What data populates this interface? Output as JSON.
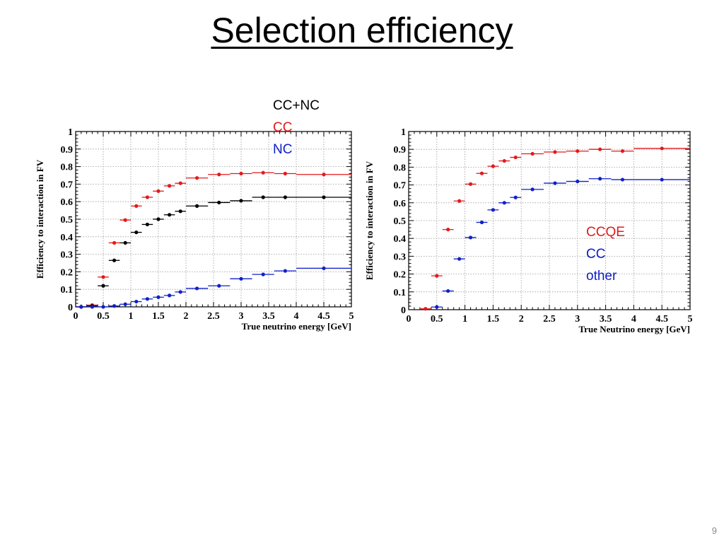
{
  "slide": {
    "title": "Selection efficiency",
    "page_number": "9"
  },
  "colors": {
    "red": "#e31a1c",
    "black": "#000000",
    "blue": "#1020c8"
  },
  "chart_data": [
    {
      "type": "scatter",
      "title": "",
      "xlabel": "True neutrino energy [GeV]",
      "ylabel": "Efficiency to interaction in FV",
      "xlim": [
        0,
        5
      ],
      "ylim": [
        0,
        1
      ],
      "xticks": [
        "0",
        "0.5",
        "1",
        "1.5",
        "2",
        "2.5",
        "3",
        "3.5",
        "4",
        "4.5",
        "5"
      ],
      "yticks": [
        "0",
        "0.1",
        "0.2",
        "0.3",
        "0.4",
        "0.5",
        "0.6",
        "0.7",
        "0.8",
        "0.9",
        "1"
      ],
      "grid": true,
      "legend": {
        "entries": [
          "CC+NC",
          "CC",
          "NC"
        ],
        "placement": "top-right"
      },
      "series": [
        {
          "name": "CC",
          "color": "#e31a1c",
          "x": [
            0.1,
            0.3,
            0.5,
            0.7,
            0.9,
            1.1,
            1.3,
            1.5,
            1.7,
            1.9,
            2.2,
            2.6,
            3.0,
            3.4,
            3.8,
            4.5
          ],
          "xerr": [
            0.1,
            0.1,
            0.1,
            0.1,
            0.1,
            0.1,
            0.1,
            0.1,
            0.1,
            0.1,
            0.2,
            0.2,
            0.2,
            0.2,
            0.2,
            0.5
          ],
          "y": [
            0.0,
            0.01,
            0.17,
            0.365,
            0.495,
            0.575,
            0.625,
            0.66,
            0.69,
            0.705,
            0.735,
            0.755,
            0.76,
            0.765,
            0.76,
            0.755
          ]
        },
        {
          "name": "CC+NC",
          "color": "#000000",
          "x": [
            0.1,
            0.3,
            0.5,
            0.7,
            0.9,
            1.1,
            1.3,
            1.5,
            1.7,
            1.9,
            2.2,
            2.6,
            3.0,
            3.4,
            3.8,
            4.5
          ],
          "xerr": [
            0.1,
            0.1,
            0.1,
            0.1,
            0.1,
            0.1,
            0.1,
            0.1,
            0.1,
            0.1,
            0.2,
            0.2,
            0.2,
            0.2,
            0.2,
            0.5
          ],
          "y": [
            0.0,
            0.005,
            0.12,
            0.265,
            0.365,
            0.425,
            0.47,
            0.5,
            0.525,
            0.545,
            0.575,
            0.595,
            0.605,
            0.625,
            0.625,
            0.625
          ]
        },
        {
          "name": "NC",
          "color": "#1020c8",
          "x": [
            0.1,
            0.3,
            0.5,
            0.7,
            0.9,
            1.1,
            1.3,
            1.5,
            1.7,
            1.9,
            2.2,
            2.6,
            3.0,
            3.4,
            3.8,
            4.5
          ],
          "xerr": [
            0.1,
            0.1,
            0.1,
            0.1,
            0.1,
            0.1,
            0.1,
            0.1,
            0.1,
            0.1,
            0.2,
            0.2,
            0.2,
            0.2,
            0.2,
            0.5
          ],
          "y": [
            0.0,
            0.0,
            0.0,
            0.005,
            0.015,
            0.03,
            0.045,
            0.055,
            0.065,
            0.085,
            0.105,
            0.12,
            0.16,
            0.185,
            0.205,
            0.22
          ]
        }
      ]
    },
    {
      "type": "scatter",
      "title": "",
      "xlabel": "True Neutrino energy [GeV]",
      "ylabel": "Efficiency to interaction in FV",
      "xlim": [
        0,
        5
      ],
      "ylim": [
        0,
        1
      ],
      "xticks": [
        "0",
        "0.5",
        "1",
        "1.5",
        "2",
        "2.5",
        "3",
        "3.5",
        "4",
        "4.5",
        "5"
      ],
      "yticks": [
        "0",
        "0.1",
        "0.2",
        "0.3",
        "0.4",
        "0.5",
        "0.6",
        "0.7",
        "0.8",
        "0.9",
        "1"
      ],
      "grid": true,
      "legend": {
        "entries": [
          "CCQE",
          "CC",
          "other"
        ],
        "placement": "right"
      },
      "series": [
        {
          "name": "CCQE",
          "color": "#e31a1c",
          "x": [
            0.3,
            0.5,
            0.7,
            0.9,
            1.1,
            1.3,
            1.5,
            1.7,
            1.9,
            2.2,
            2.6,
            3.0,
            3.4,
            3.8,
            4.5
          ],
          "xerr": [
            0.1,
            0.1,
            0.1,
            0.1,
            0.1,
            0.1,
            0.1,
            0.1,
            0.1,
            0.2,
            0.2,
            0.2,
            0.2,
            0.2,
            0.5
          ],
          "y": [
            0.005,
            0.19,
            0.45,
            0.61,
            0.705,
            0.765,
            0.805,
            0.835,
            0.855,
            0.875,
            0.885,
            0.89,
            0.9,
            0.89,
            0.905
          ]
        },
        {
          "name": "CC other",
          "color": "#1020c8",
          "x": [
            0.5,
            0.7,
            0.9,
            1.1,
            1.3,
            1.5,
            1.7,
            1.9,
            2.2,
            2.6,
            3.0,
            3.4,
            3.8,
            4.5
          ],
          "xerr": [
            0.1,
            0.1,
            0.1,
            0.1,
            0.1,
            0.1,
            0.1,
            0.1,
            0.2,
            0.2,
            0.2,
            0.2,
            0.2,
            0.5
          ],
          "y": [
            0.015,
            0.105,
            0.285,
            0.405,
            0.49,
            0.56,
            0.6,
            0.63,
            0.675,
            0.71,
            0.72,
            0.735,
            0.73,
            0.73
          ]
        }
      ]
    }
  ]
}
